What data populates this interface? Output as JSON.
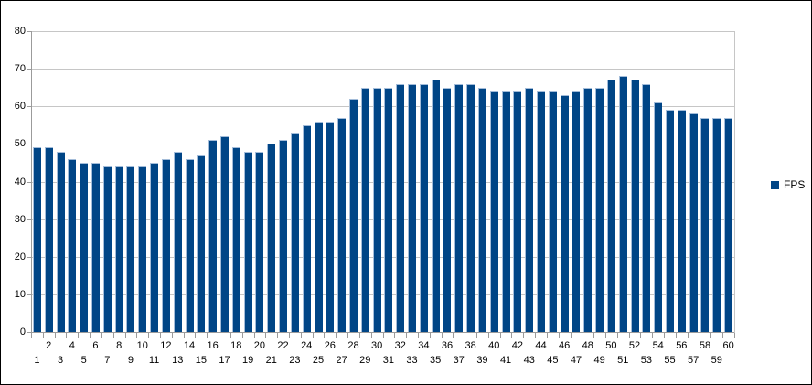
{
  "legend": {
    "label": "FPS"
  },
  "colors": {
    "bar_fill": "#004586",
    "bar_highlight": "#a3bcd9",
    "gridline": "#c6c6c6",
    "axis": "#9b9b9b",
    "text": "#000000",
    "background": "#ffffff",
    "border": "#000000"
  },
  "y_axis": {
    "ticks": [
      0,
      10,
      20,
      30,
      40,
      50,
      60,
      70,
      80
    ]
  },
  "chart_data": {
    "type": "bar",
    "title": "",
    "xlabel": "",
    "ylabel": "",
    "series_name": "FPS",
    "x": [
      1,
      2,
      3,
      4,
      5,
      6,
      7,
      8,
      9,
      10,
      11,
      12,
      13,
      14,
      15,
      16,
      17,
      18,
      19,
      20,
      21,
      22,
      23,
      24,
      25,
      26,
      27,
      28,
      29,
      30,
      31,
      32,
      33,
      34,
      35,
      36,
      37,
      38,
      39,
      40,
      41,
      42,
      43,
      44,
      45,
      46,
      47,
      48,
      49,
      50,
      51,
      52,
      53,
      54,
      55,
      56,
      57,
      58,
      59,
      60
    ],
    "values": [
      49,
      49,
      48,
      46,
      45,
      45,
      44,
      44,
      44,
      44,
      45,
      46,
      48,
      46,
      47,
      51,
      52,
      49,
      48,
      48,
      50,
      51,
      53,
      55,
      56,
      56,
      57,
      62,
      65,
      65,
      65,
      66,
      66,
      66,
      67,
      65,
      66,
      66,
      65,
      64,
      64,
      64,
      65,
      64,
      64,
      63,
      64,
      65,
      65,
      67,
      68,
      67,
      66,
      61,
      59,
      59,
      58,
      57,
      57,
      57
    ],
    "ylim": [
      0,
      80
    ],
    "grid": true,
    "legend_position": "right"
  }
}
